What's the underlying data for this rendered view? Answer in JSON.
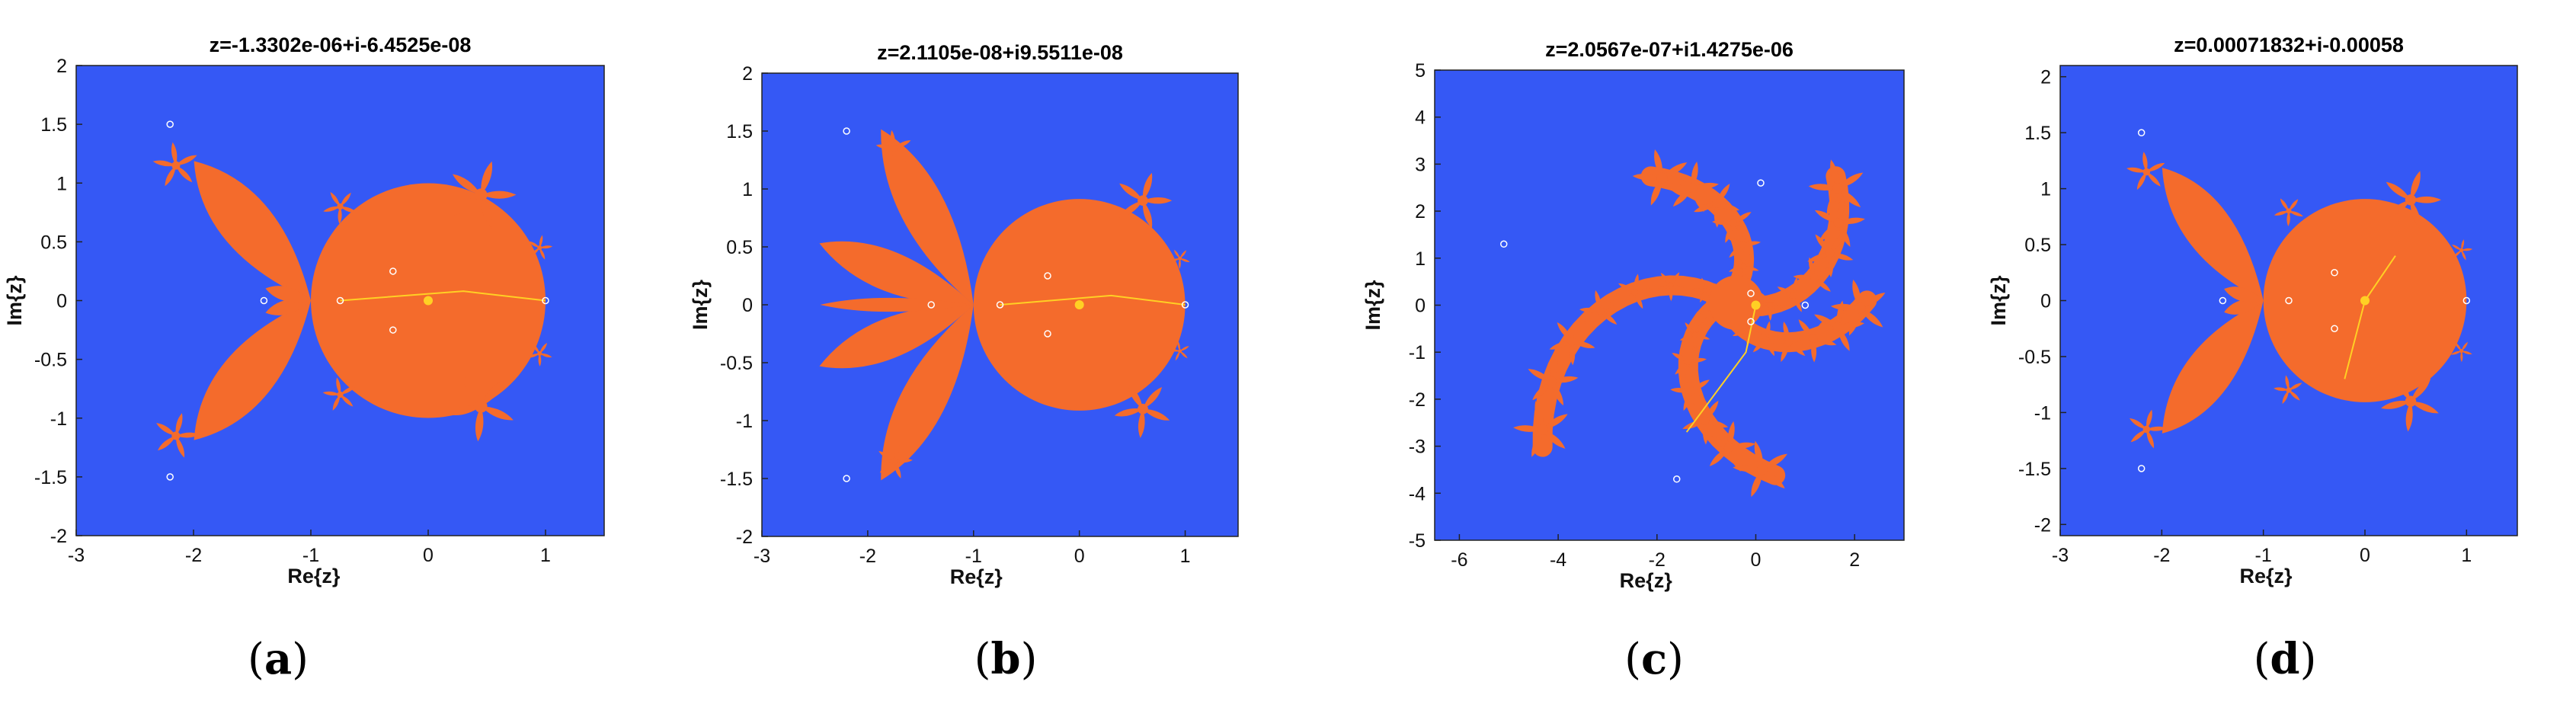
{
  "colors": {
    "background": "#3558f5",
    "fractal": "#f46b2c",
    "orbit": "#ffd024",
    "marker": "#ffffff"
  },
  "chart_data": [
    {
      "type": "heatmap",
      "id": "a",
      "title": "z=-1.3302e-06+i-6.4525e-08",
      "xlabel": "Re{z}",
      "ylabel": "Im{z}",
      "xlim": [
        -3,
        1.5
      ],
      "ylim": [
        -2,
        2
      ],
      "xticks": [
        -3,
        -2,
        -1,
        0,
        1
      ],
      "yticks": [
        -2,
        -1.5,
        -1,
        -0.5,
        0,
        0.5,
        1,
        1.5,
        2
      ],
      "caption": "a",
      "grid": false
    },
    {
      "type": "heatmap",
      "id": "b",
      "title": "z=2.1105e-08+i9.5511e-08",
      "xlabel": "Re{z}",
      "ylabel": "Im{z}",
      "xlim": [
        -3,
        1.5
      ],
      "ylim": [
        -2,
        2
      ],
      "xticks": [
        -3,
        -2,
        -1,
        0,
        1
      ],
      "yticks": [
        -2,
        -1.5,
        -1,
        -0.5,
        0,
        0.5,
        1,
        1.5,
        2
      ],
      "caption": "b",
      "grid": false
    },
    {
      "type": "heatmap",
      "id": "c",
      "title": "z=2.0567e-07+i1.4275e-06",
      "xlabel": "Re{z}",
      "ylabel": "Im{z}",
      "xlim": [
        -6.5,
        3
      ],
      "ylim": [
        -5,
        5
      ],
      "xticks": [
        -6,
        -4,
        -2,
        0,
        2
      ],
      "yticks": [
        -5,
        -4,
        -3,
        -2,
        -1,
        0,
        1,
        2,
        3,
        4,
        5
      ],
      "caption": "c",
      "grid": false
    },
    {
      "type": "heatmap",
      "id": "d",
      "title": "z=0.00071832+i-0.00058",
      "xlabel": "Re{z}",
      "ylabel": "Im{z}",
      "xlim": [
        -3,
        1.5
      ],
      "ylim": [
        -2.1,
        2.1
      ],
      "xticks": [
        -3,
        -2,
        -1,
        0,
        1
      ],
      "yticks": [
        -2,
        -1.5,
        -1,
        -0.5,
        0,
        0.5,
        1,
        1.5,
        2
      ],
      "caption": "d",
      "grid": false
    }
  ]
}
